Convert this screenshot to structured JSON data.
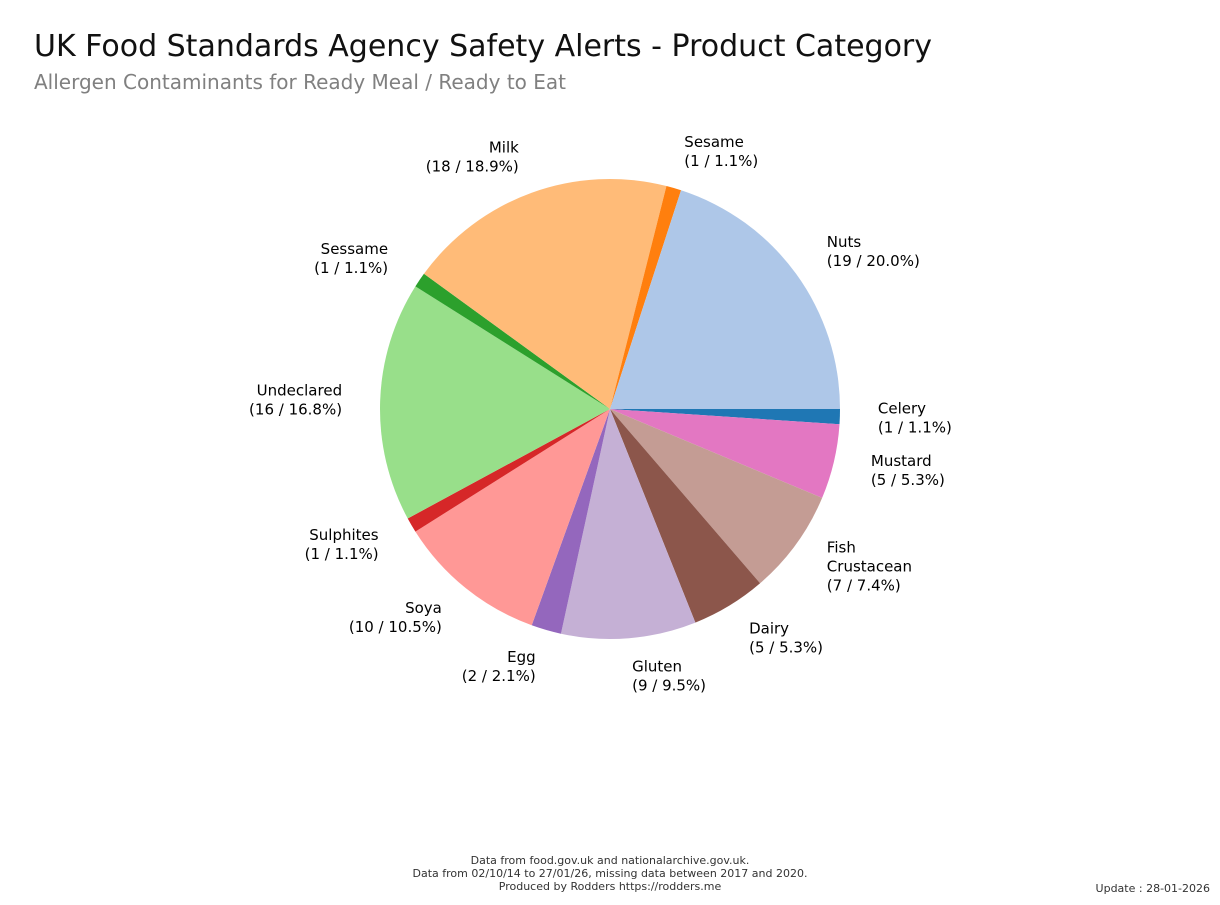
{
  "chart_data": {
    "type": "pie",
    "title": "UK Food Standards Agency Safety Alerts - Product Category",
    "subtitle": "Allergen Contaminants for Ready Meal / Ready to Eat",
    "slices": [
      {
        "name": "Celery",
        "label_lines": [
          "Celery",
          "(1 / 1.1%)"
        ],
        "value": 1,
        "percent": 1.1,
        "color": "#1f77b4"
      },
      {
        "name": "Mustard",
        "label_lines": [
          "Mustard",
          "(5 / 5.3%)"
        ],
        "value": 5,
        "percent": 5.3,
        "color": "#e377c2"
      },
      {
        "name": "Fish Crustacean",
        "label_lines": [
          "Fish",
          "Crustacean",
          "(7 / 7.4%)"
        ],
        "value": 7,
        "percent": 7.4,
        "color": "#c49c94"
      },
      {
        "name": "Dairy",
        "label_lines": [
          "Dairy",
          "(5 / 5.3%)"
        ],
        "value": 5,
        "percent": 5.3,
        "color": "#8c564b"
      },
      {
        "name": "Gluten",
        "label_lines": [
          "Gluten",
          "(9 / 9.5%)"
        ],
        "value": 9,
        "percent": 9.5,
        "color": "#c5b0d5"
      },
      {
        "name": "Egg",
        "label_lines": [
          "Egg",
          "(2 / 2.1%)"
        ],
        "value": 2,
        "percent": 2.1,
        "color": "#9467bd"
      },
      {
        "name": "Soya",
        "label_lines": [
          "Soya",
          "(10 / 10.5%)"
        ],
        "value": 10,
        "percent": 10.5,
        "color": "#ff9896"
      },
      {
        "name": "Sulphites",
        "label_lines": [
          "Sulphites",
          "(1 / 1.1%)"
        ],
        "value": 1,
        "percent": 1.1,
        "color": "#d62728"
      },
      {
        "name": "Undeclared",
        "label_lines": [
          "Undeclared",
          "(16 / 16.8%)"
        ],
        "value": 16,
        "percent": 16.8,
        "color": "#98df8a"
      },
      {
        "name": "Sessame",
        "label_lines": [
          "Sessame",
          "(1 / 1.1%)"
        ],
        "value": 1,
        "percent": 1.1,
        "color": "#2ca02c"
      },
      {
        "name": "Milk",
        "label_lines": [
          "Milk",
          "(18 / 18.9%)"
        ],
        "value": 18,
        "percent": 18.9,
        "color": "#ffbb78"
      },
      {
        "name": "Sesame",
        "label_lines": [
          "Sesame",
          "(1 / 1.1%)"
        ],
        "value": 1,
        "percent": 1.1,
        "color": "#ff7f0e"
      },
      {
        "name": "Nuts",
        "label_lines": [
          "Nuts",
          "(19 / 20.0%)"
        ],
        "value": 19,
        "percent": 20.0,
        "color": "#aec7e8"
      }
    ],
    "total": 95,
    "legend": "none"
  },
  "footer": {
    "line1": "Data from food.gov.uk and nationalarchive.gov.uk.",
    "line2": "Data from 02/10/14 to 27/01/26, missing data between 2017 and 2020.",
    "line3": "Produced by Rodders https://rodders.me"
  },
  "update": "Update : 28-01-2026"
}
